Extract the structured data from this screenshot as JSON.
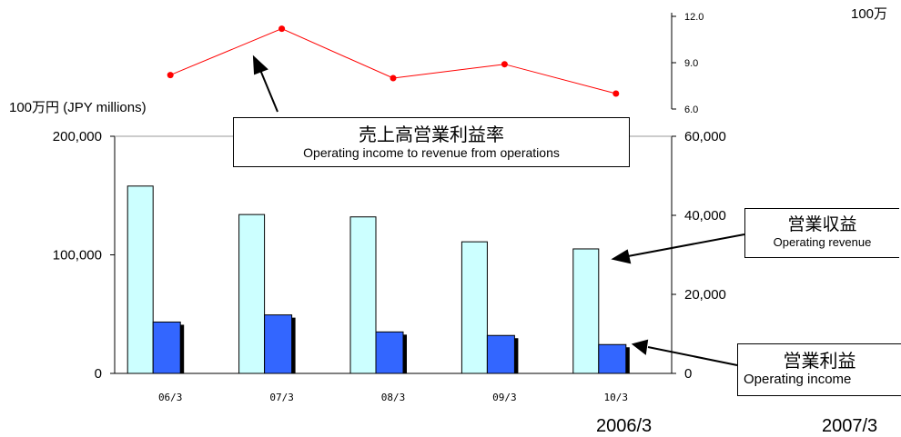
{
  "chart_data": {
    "type": "bar",
    "categories": [
      "06/3",
      "07/3",
      "08/3",
      "09/3",
      "10/3"
    ],
    "series": [
      {
        "name": "営業収益 Operating revenue",
        "axis": "left",
        "values": [
          158000,
          134000,
          132000,
          111000,
          105000
        ],
        "color": "#ccffff"
      },
      {
        "name": "営業利益 Operating income",
        "axis": "right",
        "values": [
          13000,
          14800,
          10500,
          9600,
          7300
        ],
        "color": "#3366ff"
      },
      {
        "name": "売上高営業利益率 Operating income to revenue from operations",
        "axis": "ratio",
        "type": "line",
        "values": [
          8.2,
          11.2,
          8.0,
          8.9,
          7.0
        ],
        "color": "#ff0000"
      }
    ],
    "ylabel": "100万円 (JPY millions)",
    "left_axis": {
      "ylim": [
        0,
        200000
      ],
      "ticks": [
        "0",
        "100,000",
        "200,000"
      ]
    },
    "right_axis": {
      "ylim": [
        0,
        60000
      ],
      "ticks": [
        "0",
        "20,000",
        "40,000",
        "60,000"
      ]
    },
    "ratio_axis": {
      "ylim": [
        6.0,
        12.0
      ],
      "ticks": [
        "6.0",
        "9.0",
        "12.0"
      ]
    }
  },
  "annotations": {
    "ratio": {
      "title": "売上高営業利益率",
      "subtitle": "Operating income to revenue from operations"
    },
    "revenue": {
      "title": "営業収益",
      "subtitle": "Operating revenue"
    },
    "income": {
      "title": "営業利益",
      "subtitle": "Operating income"
    }
  },
  "right_corner_label": "100万",
  "footer": {
    "left_year": "2006/3",
    "right_year": "2007/3"
  }
}
